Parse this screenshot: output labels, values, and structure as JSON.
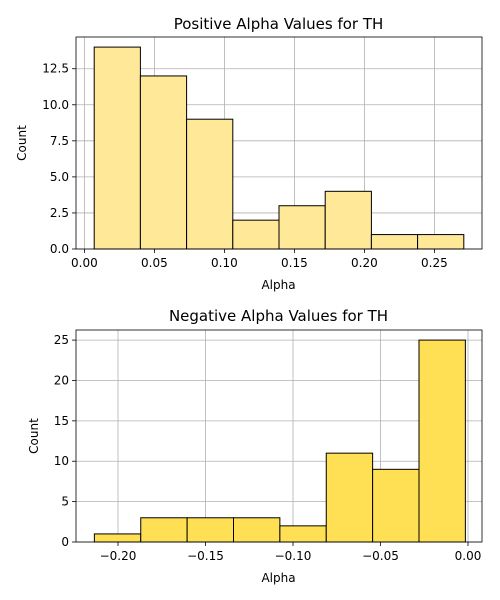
{
  "colors": {
    "positive_bar": "#ffe999",
    "negative_bar": "#ffe055"
  },
  "chart_data": [
    {
      "type": "bar",
      "title": "Positive Alpha Values for TH",
      "xlabel": "Alpha",
      "ylabel": "Count",
      "bin_edges": [
        0.007,
        0.04,
        0.073,
        0.106,
        0.139,
        0.172,
        0.205,
        0.238,
        0.271
      ],
      "values": [
        14,
        12,
        9,
        2,
        3,
        4,
        1,
        1
      ],
      "xlim": [
        -0.006,
        0.284
      ],
      "ylim": [
        0,
        14.7
      ],
      "xticks": [
        0.0,
        0.05,
        0.1,
        0.15,
        0.2,
        0.25
      ],
      "xtick_labels": [
        "0.00",
        "0.05",
        "0.10",
        "0.15",
        "0.20",
        "0.25"
      ],
      "yticks": [
        0,
        2.5,
        5,
        7.5,
        10,
        12.5
      ],
      "ytick_labels": [
        "0.0",
        "2.5",
        "5.0",
        "7.5",
        "10.0",
        "12.5"
      ],
      "grid": true
    },
    {
      "type": "bar",
      "title": "Negative Alpha Values for TH",
      "xlabel": "Alpha",
      "ylabel": "Count",
      "bin_edges": [
        -0.2135,
        -0.187,
        -0.1605,
        -0.134,
        -0.1075,
        -0.081,
        -0.0545,
        -0.028,
        -0.0015
      ],
      "values": [
        1,
        3,
        3,
        3,
        2,
        11,
        9,
        25
      ],
      "xlim": [
        -0.224,
        0.008
      ],
      "ylim": [
        0,
        26.25
      ],
      "xticks": [
        -0.2,
        -0.15,
        -0.1,
        -0.05,
        0.0
      ],
      "xtick_labels": [
        "−0.20",
        "−0.15",
        "−0.10",
        "−0.05",
        "0.00"
      ],
      "yticks": [
        0,
        5,
        10,
        15,
        20,
        25
      ],
      "ytick_labels": [
        "0",
        "5",
        "10",
        "15",
        "20",
        "25"
      ],
      "grid": true
    }
  ]
}
